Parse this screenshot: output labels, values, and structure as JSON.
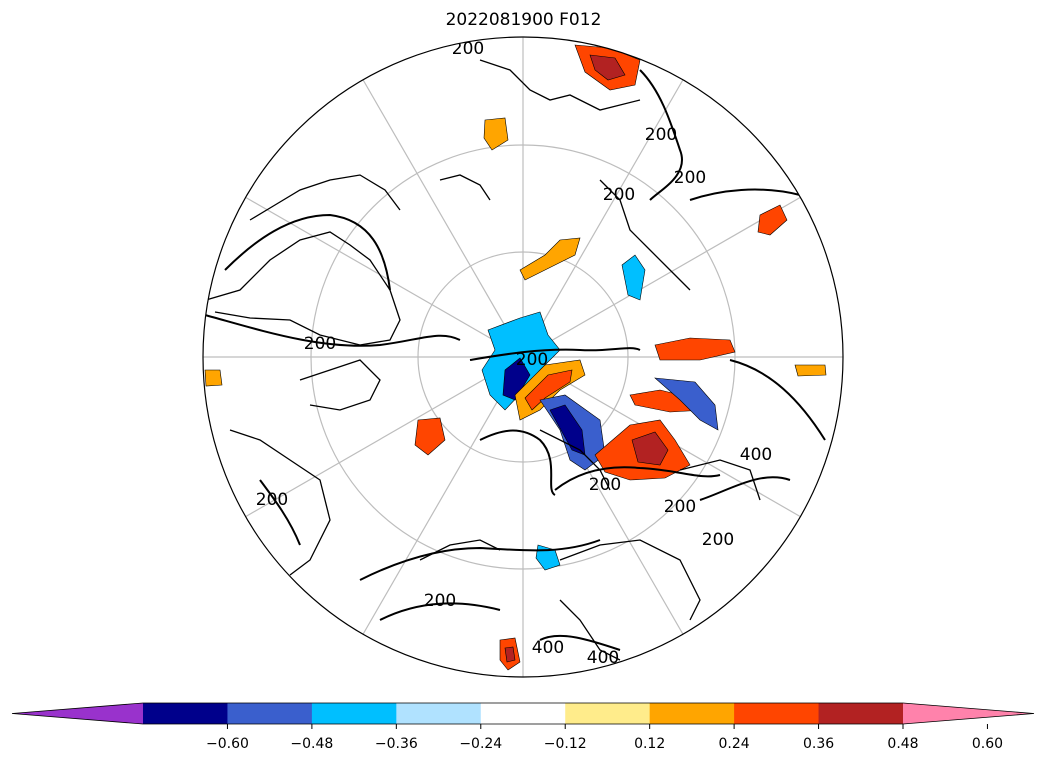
{
  "title": "2022081900 F012",
  "colorbar": {
    "colors": [
      "#9932cc",
      "#00008b",
      "#3a5fcd",
      "#00bfff",
      "#b0e2ff",
      "#ffffff",
      "#ffec8b",
      "#ffa500",
      "#ff4500",
      "#b22222",
      "#ff82ab"
    ],
    "tick_labels": [
      "−0.60",
      "−0.48",
      "−0.36",
      "−0.24",
      "−0.12",
      "0.12",
      "0.24",
      "0.36",
      "0.48",
      "0.60"
    ],
    "extend": "both"
  },
  "contour_labels": [
    {
      "text": "200"
    },
    {
      "text": "200"
    },
    {
      "text": "200"
    },
    {
      "text": "200"
    },
    {
      "text": "200"
    },
    {
      "text": "200"
    },
    {
      "text": "200"
    },
    {
      "text": "200"
    },
    {
      "text": "200"
    },
    {
      "text": "200"
    },
    {
      "text": "200"
    },
    {
      "text": "400"
    },
    {
      "text": "400"
    },
    {
      "text": "400"
    }
  ],
  "map": {
    "projection": "north-polar-stereographic",
    "graticule": true
  }
}
